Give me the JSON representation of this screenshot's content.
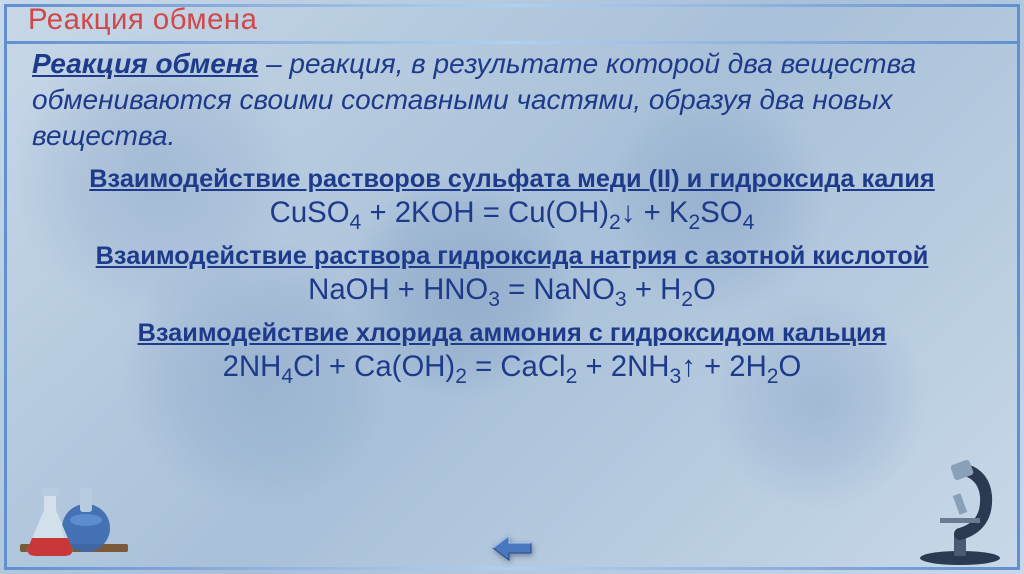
{
  "title": {
    "text": "Реакция обмена",
    "color": "#d04848",
    "font_size_pt": 22
  },
  "definition": {
    "term": "Реакция обмена",
    "term_color": "#1e3a8a",
    "body": " – реакция, в результате которой два вещества обмениваются своими составными частями, образуя два новых вещества.",
    "body_color": "#1e3a8a",
    "font_size_pt": 21,
    "font_style": "italic"
  },
  "sections": [
    {
      "heading": "Взаимодействие растворов сульфата меди (II) и гидроксида калия",
      "heading_color": "#1e3a8a",
      "heading_font_size_pt": 19,
      "equation_html": "CuSO<sub>4</sub> + 2KOH = Cu(OH)<sub>2</sub>↓ + K<sub>2</sub>SO<sub>4</sub>",
      "equation_color": "#1e3a8a",
      "equation_font_size_pt": 22
    },
    {
      "heading": "Взаимодействие раствора гидроксида натрия с азотной кислотой",
      "heading_color": "#1e3a8a",
      "heading_font_size_pt": 19,
      "equation_html": "NaOH + HNO<sub>3</sub> = NaNO<sub>3</sub> + H<sub>2</sub>O",
      "equation_color": "#1e3a8a",
      "equation_font_size_pt": 22
    },
    {
      "heading": "Взаимодействие хлорида аммония с гидроксидом кальция",
      "heading_color": "#1e3a8a",
      "heading_font_size_pt": 19,
      "equation_html": "2NH<sub>4</sub>Cl + Ca(OH)<sub>2</sub> = CaCl<sub>2</sub> + 2NH<sub>3</sub>↑ + 2H<sub>2</sub>O",
      "equation_color": "#1e3a8a",
      "equation_font_size_pt": 22
    }
  ],
  "palette": {
    "slide_bg_start": "#c8d8e8",
    "slide_bg_end": "#a8c0d8",
    "frame_gradient": [
      "#6090d0",
      "#90b0e0",
      "#b0d0f0"
    ],
    "nav_arrow_fill": "#4a78c0",
    "flask_red": "#c83838",
    "flask_blue": "#3868b0",
    "microscope_dark": "#2a3a50",
    "microscope_light": "#8aa0b8"
  },
  "nav": {
    "back_label": "back"
  }
}
